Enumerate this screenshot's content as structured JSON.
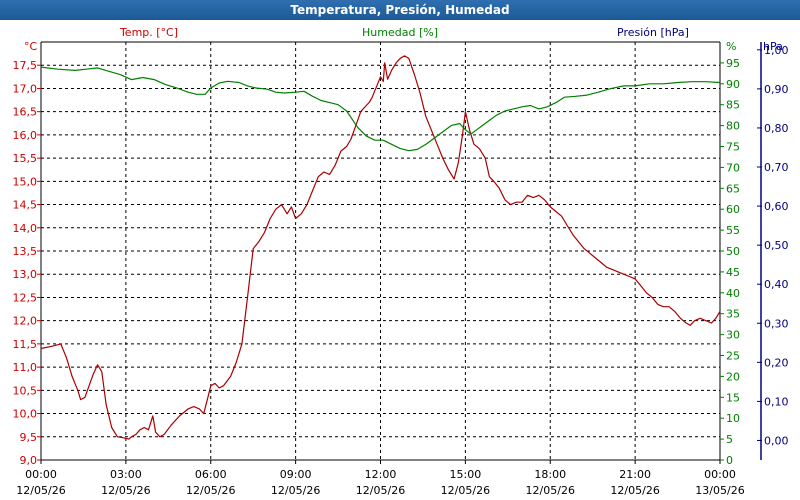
{
  "window": {
    "title": "Temperatura, Presión, Humedad"
  },
  "chart_data": {
    "type": "line",
    "title": "Temperatura, Presión, Humedad",
    "grid": true,
    "x_ticks": [
      {
        "time": "00:00",
        "date": "12/05/26"
      },
      {
        "time": "03:00",
        "date": "12/05/26"
      },
      {
        "time": "06:00",
        "date": "12/05/26"
      },
      {
        "time": "09:00",
        "date": "12/05/26"
      },
      {
        "time": "12:00",
        "date": "12/05/26"
      },
      {
        "time": "15:00",
        "date": "12/05/26"
      },
      {
        "time": "18:00",
        "date": "12/05/26"
      },
      {
        "time": "21:00",
        "date": "12/05/26"
      },
      {
        "time": "00:00",
        "date": "13/05/26"
      }
    ],
    "xlim_hours": [
      0,
      24
    ],
    "axes": {
      "temp": {
        "label": "Temp. [°C]",
        "unit": "°C",
        "color": "#cc0000",
        "ylim": [
          9.0,
          18.0
        ],
        "ticks": [
          "9,0",
          "9,5",
          "10,0",
          "10,5",
          "11,0",
          "11,5",
          "12,0",
          "12,5",
          "13,0",
          "13,5",
          "14,0",
          "14,5",
          "15,0",
          "15,5",
          "16,0",
          "16,5",
          "17,0",
          "17,5"
        ]
      },
      "hum": {
        "label": "Humedad [%]",
        "unit": "%",
        "color": "#008000",
        "ylim": [
          0,
          100
        ],
        "ticks": [
          "0",
          "5",
          "10",
          "15",
          "20",
          "25",
          "30",
          "35",
          "40",
          "45",
          "50",
          "55",
          "60",
          "65",
          "70",
          "75",
          "80",
          "85",
          "90",
          "95"
        ]
      },
      "pres": {
        "label": "Presión [hPa]",
        "unit": "hPa",
        "color": "#000080",
        "ylim": [
          -0.05,
          1.02
        ],
        "ticks": [
          "0,00",
          "0,10",
          "0,20",
          "0,30",
          "0,40",
          "0,50",
          "0,60",
          "0,70",
          "0,80",
          "0,90",
          "1,00"
        ]
      }
    },
    "series": [
      {
        "name": "Temp. [°C]",
        "axis": "temp",
        "color": "#aa0000",
        "points": [
          [
            0.0,
            11.4
          ],
          [
            0.4,
            11.45
          ],
          [
            0.7,
            11.5
          ],
          [
            0.9,
            11.2
          ],
          [
            1.1,
            10.8
          ],
          [
            1.3,
            10.5
          ],
          [
            1.4,
            10.3
          ],
          [
            1.55,
            10.35
          ],
          [
            1.7,
            10.6
          ],
          [
            1.85,
            10.85
          ],
          [
            2.0,
            11.05
          ],
          [
            2.15,
            10.9
          ],
          [
            2.3,
            10.2
          ],
          [
            2.5,
            9.7
          ],
          [
            2.7,
            9.5
          ],
          [
            2.9,
            9.48
          ],
          [
            3.1,
            9.45
          ],
          [
            3.2,
            9.5
          ],
          [
            3.35,
            9.55
          ],
          [
            3.5,
            9.65
          ],
          [
            3.65,
            9.7
          ],
          [
            3.8,
            9.65
          ],
          [
            3.95,
            9.95
          ],
          [
            4.05,
            9.6
          ],
          [
            4.2,
            9.5
          ],
          [
            4.35,
            9.55
          ],
          [
            4.6,
            9.75
          ],
          [
            4.9,
            9.95
          ],
          [
            5.2,
            10.1
          ],
          [
            5.4,
            10.15
          ],
          [
            5.6,
            10.1
          ],
          [
            5.75,
            10.0
          ],
          [
            5.9,
            10.35
          ],
          [
            6.0,
            10.6
          ],
          [
            6.15,
            10.65
          ],
          [
            6.3,
            10.55
          ],
          [
            6.45,
            10.6
          ],
          [
            6.7,
            10.8
          ],
          [
            6.9,
            11.1
          ],
          [
            7.1,
            11.5
          ],
          [
            7.3,
            12.5
          ],
          [
            7.5,
            13.55
          ],
          [
            7.7,
            13.7
          ],
          [
            7.9,
            13.9
          ],
          [
            8.1,
            14.2
          ],
          [
            8.3,
            14.4
          ],
          [
            8.5,
            14.5
          ],
          [
            8.7,
            14.3
          ],
          [
            8.85,
            14.45
          ],
          [
            9.0,
            14.2
          ],
          [
            9.2,
            14.3
          ],
          [
            9.4,
            14.5
          ],
          [
            9.6,
            14.8
          ],
          [
            9.8,
            15.1
          ],
          [
            10.0,
            15.2
          ],
          [
            10.2,
            15.15
          ],
          [
            10.4,
            15.35
          ],
          [
            10.6,
            15.65
          ],
          [
            10.8,
            15.75
          ],
          [
            10.95,
            15.9
          ],
          [
            11.1,
            16.15
          ],
          [
            11.3,
            16.5
          ],
          [
            11.45,
            16.6
          ],
          [
            11.6,
            16.7
          ],
          [
            11.7,
            16.8
          ],
          [
            11.8,
            16.95
          ],
          [
            11.9,
            17.1
          ],
          [
            12.0,
            17.25
          ],
          [
            12.1,
            17.15
          ],
          [
            12.15,
            17.55
          ],
          [
            12.25,
            17.2
          ],
          [
            12.4,
            17.4
          ],
          [
            12.55,
            17.55
          ],
          [
            12.7,
            17.65
          ],
          [
            12.85,
            17.7
          ],
          [
            13.0,
            17.65
          ],
          [
            13.2,
            17.3
          ],
          [
            13.4,
            16.9
          ],
          [
            13.6,
            16.4
          ],
          [
            13.8,
            16.1
          ],
          [
            14.0,
            15.8
          ],
          [
            14.2,
            15.5
          ],
          [
            14.4,
            15.25
          ],
          [
            14.6,
            15.05
          ],
          [
            14.75,
            15.4
          ],
          [
            14.9,
            16.0
          ],
          [
            15.0,
            16.5
          ],
          [
            15.15,
            16.1
          ],
          [
            15.3,
            15.8
          ],
          [
            15.5,
            15.7
          ],
          [
            15.7,
            15.5
          ],
          [
            15.85,
            15.1
          ],
          [
            16.0,
            15.0
          ],
          [
            16.2,
            14.85
          ],
          [
            16.4,
            14.6
          ],
          [
            16.6,
            14.5
          ],
          [
            16.8,
            14.55
          ],
          [
            17.0,
            14.55
          ],
          [
            17.2,
            14.7
          ],
          [
            17.4,
            14.65
          ],
          [
            17.6,
            14.7
          ],
          [
            17.8,
            14.6
          ],
          [
            18.0,
            14.45
          ],
          [
            18.2,
            14.35
          ],
          [
            18.4,
            14.25
          ],
          [
            18.6,
            14.05
          ],
          [
            18.8,
            13.85
          ],
          [
            19.0,
            13.7
          ],
          [
            19.2,
            13.55
          ],
          [
            19.4,
            13.45
          ],
          [
            19.6,
            13.35
          ],
          [
            19.8,
            13.25
          ],
          [
            20.0,
            13.15
          ],
          [
            20.2,
            13.1
          ],
          [
            20.4,
            13.05
          ],
          [
            20.6,
            13.0
          ],
          [
            20.8,
            12.95
          ],
          [
            21.0,
            12.9
          ],
          [
            21.2,
            12.75
          ],
          [
            21.4,
            12.6
          ],
          [
            21.6,
            12.5
          ],
          [
            21.8,
            12.35
          ],
          [
            22.0,
            12.3
          ],
          [
            22.2,
            12.3
          ],
          [
            22.4,
            12.2
          ],
          [
            22.6,
            12.05
          ],
          [
            22.8,
            11.95
          ],
          [
            22.95,
            11.9
          ],
          [
            23.1,
            12.0
          ],
          [
            23.3,
            12.05
          ],
          [
            23.5,
            12.0
          ],
          [
            23.7,
            11.95
          ],
          [
            23.85,
            12.05
          ],
          [
            24.0,
            12.2
          ]
        ]
      },
      {
        "name": "Humedad [%]",
        "axis": "hum",
        "color": "#008000",
        "points": [
          [
            0.0,
            94.0
          ],
          [
            0.6,
            93.5
          ],
          [
            1.2,
            93.2
          ],
          [
            1.6,
            93.5
          ],
          [
            2.0,
            93.8
          ],
          [
            2.4,
            93.0
          ],
          [
            2.8,
            92.2
          ],
          [
            3.2,
            91.0
          ],
          [
            3.6,
            91.5
          ],
          [
            4.0,
            91.0
          ],
          [
            4.4,
            89.8
          ],
          [
            4.8,
            89.0
          ],
          [
            5.2,
            88.0
          ],
          [
            5.5,
            87.5
          ],
          [
            5.8,
            87.5
          ],
          [
            6.0,
            89.0
          ],
          [
            6.3,
            90.2
          ],
          [
            6.6,
            90.6
          ],
          [
            7.0,
            90.3
          ],
          [
            7.3,
            89.5
          ],
          [
            7.6,
            89.0
          ],
          [
            8.0,
            88.7
          ],
          [
            8.3,
            88.0
          ],
          [
            8.6,
            87.8
          ],
          [
            9.0,
            88.0
          ],
          [
            9.3,
            88.2
          ],
          [
            9.6,
            87.0
          ],
          [
            9.9,
            86.0
          ],
          [
            10.2,
            85.5
          ],
          [
            10.5,
            85.0
          ],
          [
            10.8,
            83.5
          ],
          [
            11.0,
            81.5
          ],
          [
            11.2,
            79.5
          ],
          [
            11.5,
            77.5
          ],
          [
            11.8,
            76.5
          ],
          [
            12.1,
            76.5
          ],
          [
            12.4,
            75.5
          ],
          [
            12.7,
            74.5
          ],
          [
            13.0,
            74.0
          ],
          [
            13.3,
            74.3
          ],
          [
            13.6,
            75.5
          ],
          [
            13.9,
            77.0
          ],
          [
            14.2,
            78.5
          ],
          [
            14.5,
            80.0
          ],
          [
            14.8,
            80.5
          ],
          [
            15.0,
            79.0
          ],
          [
            15.2,
            78.0
          ],
          [
            15.5,
            79.5
          ],
          [
            15.8,
            81.0
          ],
          [
            16.1,
            82.5
          ],
          [
            16.4,
            83.5
          ],
          [
            16.7,
            84.0
          ],
          [
            17.0,
            84.5
          ],
          [
            17.3,
            84.8
          ],
          [
            17.6,
            84.0
          ],
          [
            17.9,
            84.5
          ],
          [
            18.2,
            85.5
          ],
          [
            18.5,
            86.8
          ],
          [
            18.9,
            87.0
          ],
          [
            19.3,
            87.3
          ],
          [
            19.7,
            88.0
          ],
          [
            20.1,
            88.8
          ],
          [
            20.6,
            89.5
          ],
          [
            21.0,
            89.5
          ],
          [
            21.5,
            90.0
          ],
          [
            22.0,
            90.0
          ],
          [
            22.5,
            90.3
          ],
          [
            23.0,
            90.5
          ],
          [
            23.5,
            90.5
          ],
          [
            24.0,
            90.3
          ]
        ]
      }
    ]
  }
}
